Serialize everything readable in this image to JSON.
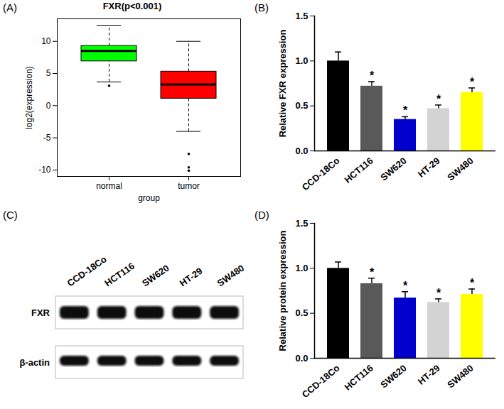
{
  "chart_data": [
    {
      "panel_label": "(A)",
      "type": "box",
      "title": "FXR(p<0.001)",
      "x_label": "group",
      "y_label": "log2(expression)",
      "categories": [
        "normal",
        "tumor"
      ],
      "colors": [
        "#00ff00",
        "#ff0000"
      ],
      "boxes": [
        {
          "min": 3.7,
          "q1": 6.9,
          "median": 8.5,
          "q3": 9.3,
          "max": 12.5,
          "outliers": [
            3.1
          ]
        },
        {
          "min": -4,
          "q1": 1.1,
          "median": 3.3,
          "q3": 5.3,
          "max": 10,
          "outliers": [
            -7.5,
            -9.6,
            -10.1
          ]
        }
      ],
      "ylim": [
        -11,
        13.5
      ],
      "yticks": [
        -10,
        -5,
        0,
        5,
        10
      ]
    },
    {
      "panel_label": "(B)",
      "type": "bar",
      "y_label": "Relative FXR expression",
      "categories": [
        "CCD-18Co",
        "HCT116",
        "SW620",
        "HT-29",
        "SW480"
      ],
      "values": [
        1.0,
        0.72,
        0.35,
        0.47,
        0.65
      ],
      "errors": [
        0.1,
        0.05,
        0.03,
        0.04,
        0.05
      ],
      "significance": [
        null,
        "*",
        "*",
        "*",
        "*"
      ],
      "colors": [
        "#000000",
        "#595959",
        "#0000cd",
        "#d3d3d3",
        "#ffff00"
      ],
      "ylim": [
        0,
        1.5
      ],
      "yticks": [
        {
          "value": 0,
          "label": "0.0"
        },
        {
          "value": 0.5,
          "label": "0.5"
        },
        {
          "value": 1,
          "label": "1.0"
        },
        {
          "value": 1.5,
          "label": "1.5"
        }
      ]
    },
    {
      "panel_label": "(D)",
      "type": "bar",
      "y_label": "Relative protein expression",
      "categories": [
        "CCD-18Co",
        "HCT116",
        "SW620",
        "HT-29",
        "SW480"
      ],
      "values": [
        1.0,
        0.83,
        0.67,
        0.62,
        0.71
      ],
      "errors": [
        0.07,
        0.06,
        0.07,
        0.04,
        0.06
      ],
      "significance": [
        null,
        "*",
        "*",
        "*",
        "*"
      ],
      "colors": [
        "#000000",
        "#595959",
        "#0000cd",
        "#d3d3d3",
        "#ffff00"
      ],
      "ylim": [
        0,
        1.5
      ],
      "yticks": [
        {
          "value": 0,
          "label": "0.0"
        },
        {
          "value": 0.5,
          "label": "0.5"
        },
        {
          "value": 1,
          "label": "1.0"
        },
        {
          "value": 1.5,
          "label": "1.5"
        }
      ]
    }
  ],
  "blot": {
    "panel_label": "(C)",
    "lanes": [
      "CCD-18Co",
      "HCT116",
      "SW620",
      "HT-29",
      "SW480"
    ],
    "rows": [
      "FXR",
      "β-actin"
    ]
  }
}
